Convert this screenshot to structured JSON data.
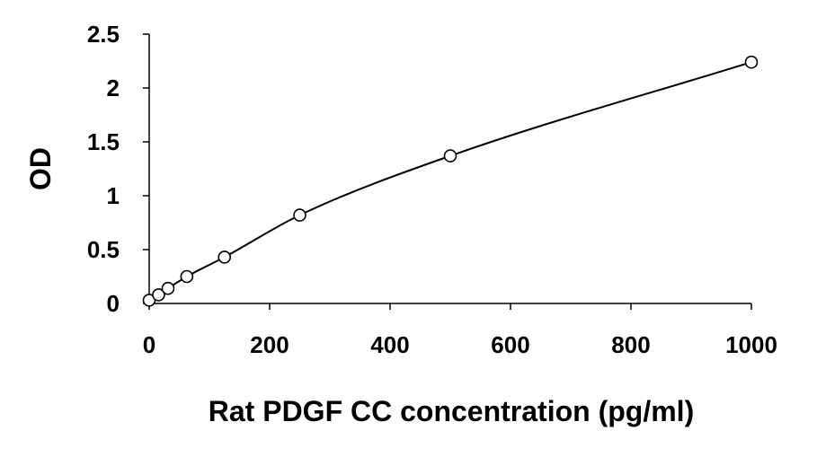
{
  "chart_data": {
    "type": "scatter",
    "title": "",
    "xlabel": "Rat PDGF CC concentration (pg/ml)",
    "ylabel": "OD",
    "xlim": [
      0,
      1000
    ],
    "ylim": [
      0,
      2.5
    ],
    "xticks": [
      0,
      200,
      400,
      600,
      800,
      1000
    ],
    "xtick_labels": [
      "0",
      "200",
      "400",
      "600",
      "800",
      "1000"
    ],
    "yticks": [
      0,
      0.5,
      1,
      1.5,
      2,
      2.5
    ],
    "ytick_labels": [
      "0",
      "0.5",
      "1",
      "1.5",
      "2",
      "2.5"
    ],
    "grid": false,
    "legend": "none",
    "series": [
      {
        "marker": "open-circle",
        "line": "smooth-fit",
        "x": [
          0,
          15.625,
          31.25,
          62.5,
          125,
          250,
          500,
          1000
        ],
        "y": [
          0.03,
          0.08,
          0.14,
          0.25,
          0.43,
          0.82,
          1.37,
          2.24
        ]
      }
    ],
    "colors": {
      "line": "#000000",
      "marker": "#000000",
      "axis": "#000000"
    }
  }
}
